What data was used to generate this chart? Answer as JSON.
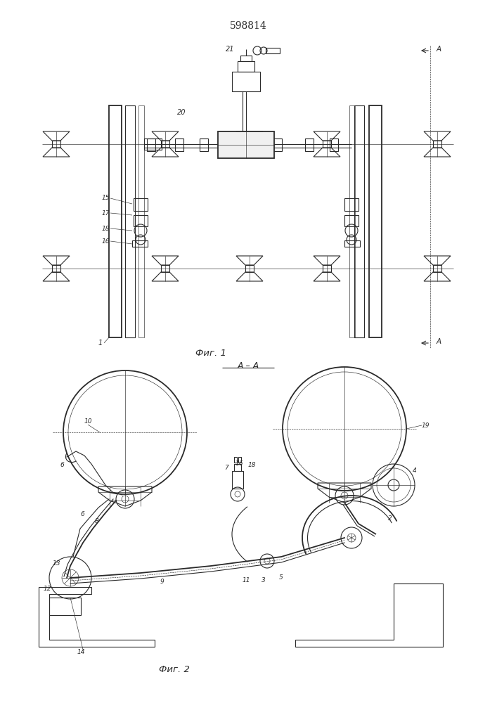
{
  "patent_number": "598814",
  "fig1_caption": "Фиг. 1",
  "fig2_caption": "Фиг. 2",
  "section_label": "А – А",
  "bg_color": "#ffffff",
  "line_color": "#2a2a2a",
  "lw": 0.8,
  "lw_thin": 0.45,
  "lw_thick": 1.3
}
